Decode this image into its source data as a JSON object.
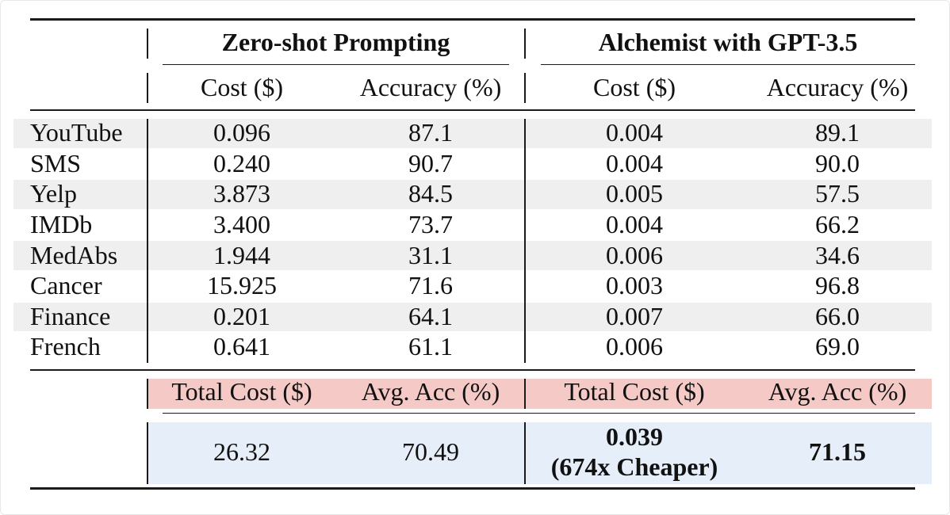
{
  "header": {
    "zero_shot_title": "Zero-shot Prompting",
    "alchemist_title": "Alchemist with GPT-3.5",
    "columns": [
      "Cost ($)",
      "Accuracy (%)",
      "Cost ($)",
      "Accuracy (%)"
    ]
  },
  "rows": [
    {
      "name": "YouTube",
      "zs_cost": "0.096",
      "zs_acc": "87.1",
      "al_cost": "0.004",
      "al_acc": "89.1"
    },
    {
      "name": "SMS",
      "zs_cost": "0.240",
      "zs_acc": "90.7",
      "al_cost": "0.004",
      "al_acc": "90.0"
    },
    {
      "name": "Yelp",
      "zs_cost": "3.873",
      "zs_acc": "84.5",
      "al_cost": "0.005",
      "al_acc": "57.5"
    },
    {
      "name": "IMDb",
      "zs_cost": "3.400",
      "zs_acc": "73.7",
      "al_cost": "0.004",
      "al_acc": "66.2"
    },
    {
      "name": "MedAbs",
      "zs_cost": "1.944",
      "zs_acc": "31.1",
      "al_cost": "0.006",
      "al_acc": "34.6"
    },
    {
      "name": "Cancer",
      "zs_cost": "15.925",
      "zs_acc": "71.6",
      "al_cost": "0.003",
      "al_acc": "96.8"
    },
    {
      "name": "Finance",
      "zs_cost": "0.201",
      "zs_acc": "64.1",
      "al_cost": "0.007",
      "al_acc": "66.0"
    },
    {
      "name": "French",
      "zs_cost": "0.641",
      "zs_acc": "61.1",
      "al_cost": "0.006",
      "al_acc": "69.0"
    }
  ],
  "summary": {
    "labels": [
      "Total Cost ($)",
      "Avg. Acc (%)",
      "Total Cost ($)",
      "Avg. Acc (%)"
    ],
    "zs_total_cost": "26.32",
    "zs_avg_acc": "70.49",
    "al_total_cost": "0.039",
    "al_cheaper_note": "(674x Cheaper)",
    "al_avg_acc": "71.15"
  },
  "colors": {
    "stripe": "#efefef",
    "summary_label_bg": "#f4c9c6",
    "summary_value_bg": "#e6eefa",
    "rule": "#1a1a1a"
  }
}
